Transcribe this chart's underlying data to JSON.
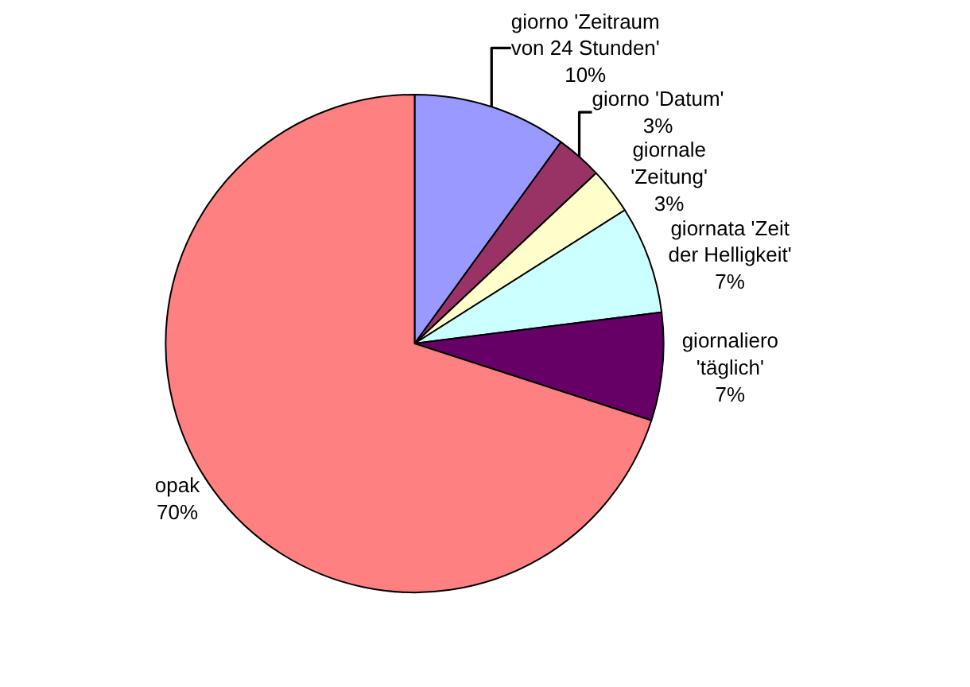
{
  "chart_data": {
    "type": "pie",
    "categories": [
      "giorno 'Zeitraum von 24 Stunden'",
      "giorno 'Datum'",
      "giornale 'Zeitung'",
      "giornata 'Zeit der Helligkeit'",
      "giornaliero 'täglich'",
      "opak"
    ],
    "values": [
      10,
      3,
      3,
      7,
      7,
      70
    ],
    "value_labels": [
      "10%",
      "3%",
      "3%",
      "7%",
      "7%",
      "70%"
    ],
    "colors": [
      "#9999ff",
      "#993366",
      "#ffffcc",
      "#ccffff",
      "#660066",
      "#ff8080"
    ],
    "legend": false
  }
}
